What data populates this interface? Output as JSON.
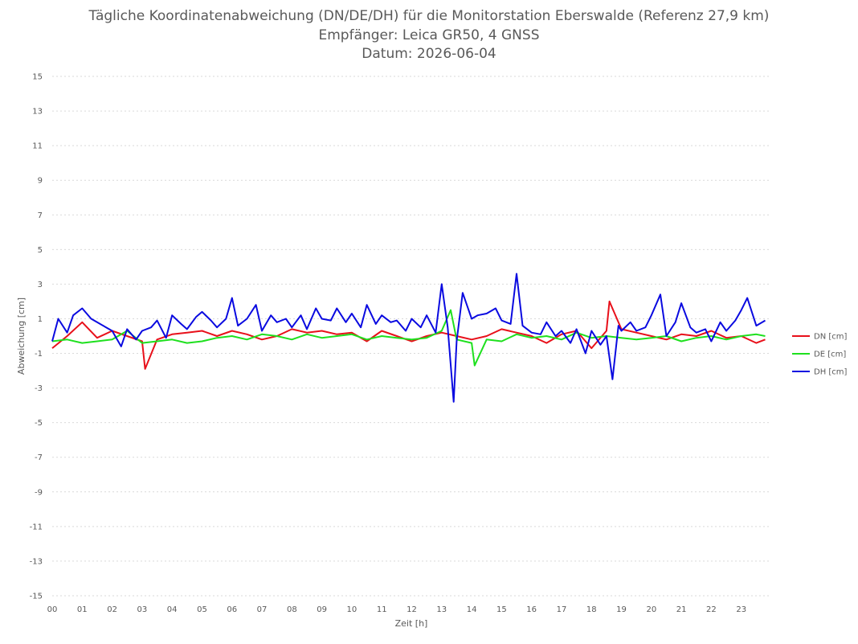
{
  "chart_data": {
    "type": "line",
    "title": "Tägliche Koordinatenabweichung (DN/DE/DH) für die Monitorstation Eberswalde (Referenz 27,9 km)",
    "subtitle": "Empfänger: Leica GR50, 4 GNSS",
    "date_line": "Datum: 2026-06-04",
    "xlabel": "Zeit [h]",
    "ylabel": "Abweichung [cm]",
    "xlim": [
      0,
      24
    ],
    "ylim": [
      -15,
      15
    ],
    "x_ticks": [
      "00",
      "01",
      "02",
      "03",
      "04",
      "05",
      "06",
      "07",
      "08",
      "09",
      "10",
      "11",
      "12",
      "13",
      "14",
      "15",
      "16",
      "17",
      "18",
      "19",
      "20",
      "21",
      "22",
      "23"
    ],
    "y_ticks": [
      15,
      13,
      11,
      9,
      7,
      5,
      3,
      1,
      -1,
      -3,
      -5,
      -7,
      -9,
      -11,
      -13,
      -15
    ],
    "grid": true,
    "legend_position": "right",
    "series": [
      {
        "name": "DN [cm]",
        "color": "#e8101a",
        "x": [
          0.0,
          0.5,
          1.0,
          1.5,
          2.0,
          2.5,
          3.0,
          3.1,
          3.5,
          4.0,
          4.5,
          5.0,
          5.5,
          6.0,
          6.5,
          7.0,
          7.5,
          8.0,
          8.5,
          9.0,
          9.5,
          10.0,
          10.5,
          11.0,
          11.5,
          12.0,
          12.5,
          13.0,
          13.5,
          14.0,
          14.5,
          15.0,
          15.5,
          16.0,
          16.5,
          17.0,
          17.5,
          18.0,
          18.5,
          18.6,
          19.0,
          19.5,
          20.0,
          20.5,
          21.0,
          21.5,
          22.0,
          22.5,
          23.0,
          23.5,
          23.8
        ],
        "y": [
          -0.7,
          0.0,
          0.8,
          -0.1,
          0.3,
          0.0,
          -0.3,
          -1.9,
          -0.2,
          0.1,
          0.2,
          0.3,
          0.0,
          0.3,
          0.1,
          -0.2,
          0.0,
          0.4,
          0.2,
          0.3,
          0.1,
          0.2,
          -0.3,
          0.3,
          0.0,
          -0.3,
          0.0,
          0.2,
          0.0,
          -0.2,
          0.0,
          0.4,
          0.2,
          0.0,
          -0.4,
          0.1,
          0.3,
          -0.7,
          0.3,
          2.0,
          0.4,
          0.2,
          0.0,
          -0.2,
          0.1,
          0.0,
          0.3,
          -0.1,
          0.0,
          -0.4,
          -0.2
        ]
      },
      {
        "name": "DE [cm]",
        "color": "#1ee01e",
        "x": [
          0.0,
          0.5,
          1.0,
          1.5,
          2.0,
          2.5,
          3.0,
          3.5,
          4.0,
          4.5,
          5.0,
          5.5,
          6.0,
          6.5,
          7.0,
          7.5,
          8.0,
          8.5,
          9.0,
          9.5,
          10.0,
          10.5,
          11.0,
          11.5,
          12.0,
          12.5,
          13.0,
          13.3,
          13.5,
          14.0,
          14.1,
          14.5,
          15.0,
          15.5,
          16.0,
          16.5,
          17.0,
          17.5,
          18.0,
          18.5,
          19.0,
          19.5,
          20.0,
          20.5,
          21.0,
          21.5,
          22.0,
          22.5,
          23.0,
          23.5,
          23.8
        ],
        "y": [
          -0.3,
          -0.2,
          -0.4,
          -0.3,
          -0.2,
          0.3,
          -0.4,
          -0.3,
          -0.2,
          -0.4,
          -0.3,
          -0.1,
          0.0,
          -0.2,
          0.1,
          0.0,
          -0.2,
          0.1,
          -0.1,
          0.0,
          0.1,
          -0.2,
          0.0,
          -0.1,
          -0.2,
          -0.1,
          0.3,
          1.5,
          -0.2,
          -0.4,
          -1.7,
          -0.2,
          -0.3,
          0.1,
          -0.1,
          0.0,
          -0.2,
          0.2,
          -0.1,
          0.0,
          -0.1,
          -0.2,
          -0.1,
          0.0,
          -0.3,
          -0.1,
          0.0,
          -0.2,
          0.0,
          0.1,
          0.0
        ]
      },
      {
        "name": "DH [cm]",
        "color": "#0a0ae0",
        "x": [
          0.0,
          0.2,
          0.5,
          0.7,
          1.0,
          1.3,
          1.5,
          1.8,
          2.0,
          2.3,
          2.5,
          2.8,
          3.0,
          3.3,
          3.5,
          3.8,
          4.0,
          4.3,
          4.5,
          4.8,
          5.0,
          5.3,
          5.5,
          5.8,
          6.0,
          6.2,
          6.5,
          6.8,
          7.0,
          7.3,
          7.5,
          7.8,
          8.0,
          8.3,
          8.5,
          8.8,
          9.0,
          9.3,
          9.5,
          9.8,
          10.0,
          10.3,
          10.5,
          10.8,
          11.0,
          11.3,
          11.5,
          11.8,
          12.0,
          12.3,
          12.5,
          12.8,
          13.0,
          13.2,
          13.4,
          13.5,
          13.7,
          14.0,
          14.2,
          14.5,
          14.8,
          15.0,
          15.3,
          15.5,
          15.7,
          16.0,
          16.3,
          16.5,
          16.8,
          17.0,
          17.3,
          17.5,
          17.8,
          18.0,
          18.3,
          18.5,
          18.7,
          18.9,
          19.0,
          19.3,
          19.5,
          19.8,
          20.0,
          20.3,
          20.5,
          20.8,
          21.0,
          21.3,
          21.5,
          21.8,
          22.0,
          22.3,
          22.5,
          22.8,
          23.0,
          23.2,
          23.5,
          23.8
        ],
        "y": [
          -0.3,
          1.0,
          0.2,
          1.2,
          1.6,
          1.0,
          0.8,
          0.5,
          0.3,
          -0.6,
          0.4,
          -0.2,
          0.3,
          0.5,
          0.9,
          -0.1,
          1.2,
          0.7,
          0.4,
          1.1,
          1.4,
          0.9,
          0.5,
          1.0,
          2.2,
          0.6,
          1.0,
          1.8,
          0.3,
          1.2,
          0.8,
          1.0,
          0.5,
          1.2,
          0.4,
          1.6,
          1.0,
          0.9,
          1.6,
          0.8,
          1.3,
          0.5,
          1.8,
          0.7,
          1.2,
          0.8,
          0.9,
          0.3,
          1.0,
          0.5,
          1.2,
          0.2,
          3.0,
          0.5,
          -3.8,
          -0.3,
          2.5,
          1.0,
          1.2,
          1.3,
          1.6,
          0.9,
          0.7,
          3.6,
          0.6,
          0.2,
          0.1,
          0.8,
          0.0,
          0.3,
          -0.4,
          0.4,
          -1.0,
          0.3,
          -0.5,
          0.0,
          -2.5,
          0.6,
          0.3,
          0.8,
          0.3,
          0.5,
          1.2,
          2.4,
          0.0,
          0.8,
          1.9,
          0.5,
          0.2,
          0.4,
          -0.3,
          0.8,
          0.3,
          0.9,
          1.5,
          2.2,
          0.6,
          0.9
        ]
      }
    ]
  }
}
